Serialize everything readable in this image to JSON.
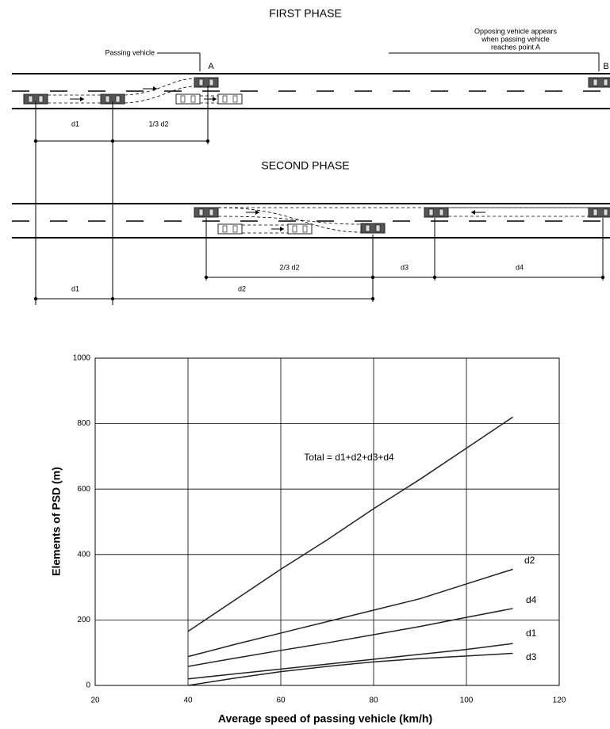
{
  "diagram": {
    "first_phase": {
      "title": "FIRST PHASE",
      "passing_label": "Passing vehicle",
      "opposing_label": [
        "Opposing vehicle appears",
        "when passing vehicle",
        "reaches point A"
      ],
      "point_a": "A",
      "point_b": "B",
      "dimensions": [
        "d1",
        "1/3 d2"
      ]
    },
    "second_phase": {
      "title": "SECOND PHASE",
      "dimensions_upper": [
        "2/3 d2",
        "d3",
        "d4"
      ],
      "dimensions_lower": [
        "d1",
        "d2"
      ]
    }
  },
  "chart_data": {
    "type": "line",
    "x_label": "Average speed of passing vehicle (km/h)",
    "y_label": "Elements of PSD (m)",
    "x": [
      40,
      50,
      60,
      70,
      80,
      90,
      100,
      110
    ],
    "series": [
      {
        "name": "Total = d1+d2+d3+d4",
        "color": "#222222",
        "values": [
          165,
          260,
          355,
          445,
          540,
          630,
          725,
          820
        ]
      },
      {
        "name": "d2",
        "color": "#222222",
        "values": [
          88,
          125,
          160,
          195,
          230,
          265,
          310,
          355
        ]
      },
      {
        "name": "d4",
        "color": "#222222",
        "values": [
          58,
          83,
          107,
          130,
          155,
          180,
          208,
          235
        ]
      },
      {
        "name": "d1",
        "color": "#222222",
        "values": [
          20,
          35,
          50,
          65,
          80,
          95,
          110,
          128
        ]
      },
      {
        "name": "d3",
        "color": "#222222",
        "values": [
          0,
          22,
          42,
          58,
          72,
          82,
          90,
          98
        ]
      }
    ],
    "xlim": [
      20,
      120
    ],
    "xticks": [
      20,
      40,
      60,
      80,
      100,
      120
    ],
    "ylim": [
      0,
      1000
    ],
    "yticks": [
      0,
      200,
      400,
      600,
      800,
      1000
    ],
    "grid": true
  }
}
